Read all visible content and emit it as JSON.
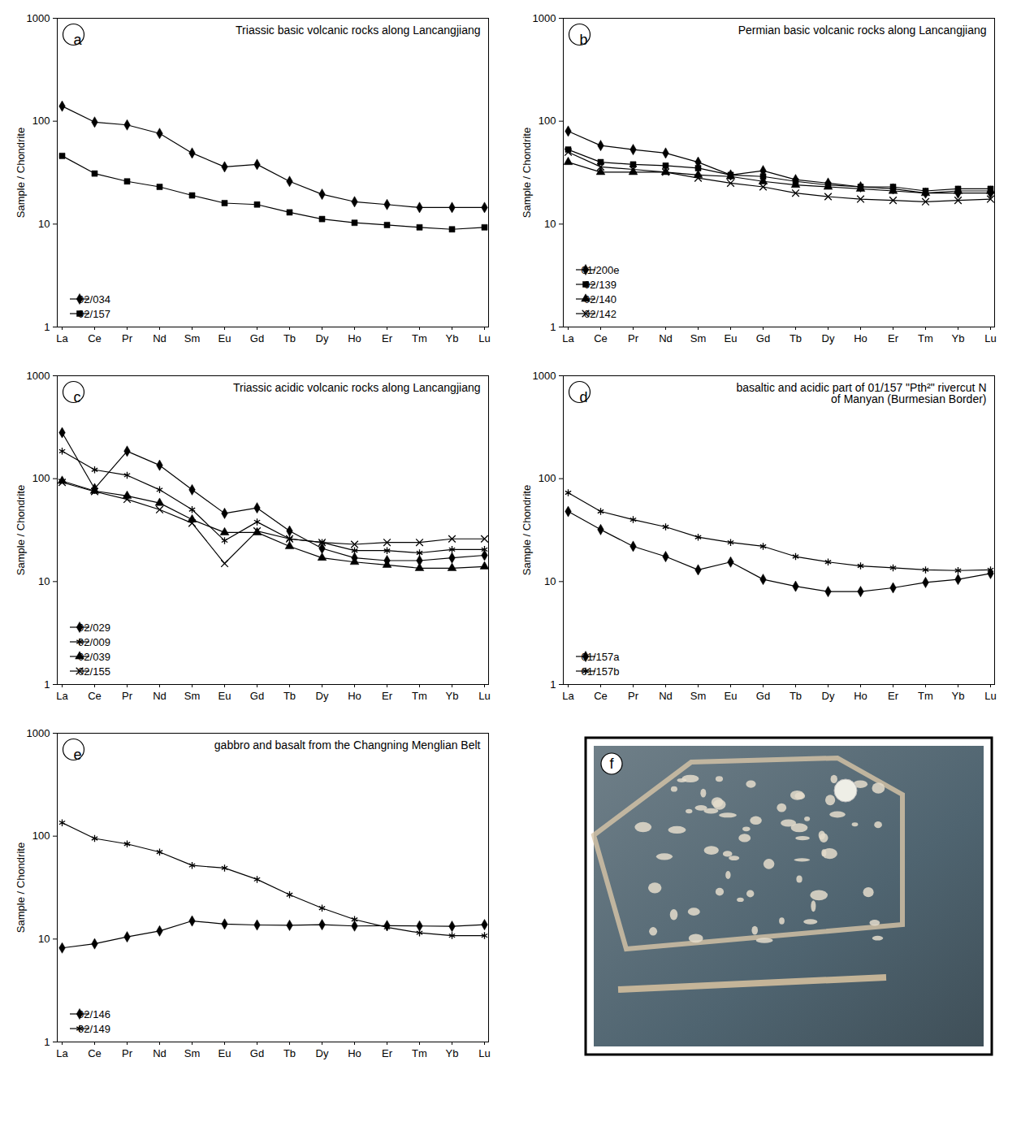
{
  "chart_data": [
    {
      "type": "line",
      "panel_label": "a",
      "title": "Triassic basic volcanic rocks along Lancangjiang",
      "y_label": "Sample / Chondrite",
      "log": "y",
      "legend": "bottom-left",
      "categories": [
        "La",
        "Ce",
        "Pr",
        "Nd",
        "Sm",
        "Eu",
        "Gd",
        "Tb",
        "Dy",
        "Ho",
        "Er",
        "Tm",
        "Yb",
        "Lu"
      ],
      "ylim": [
        1,
        1000
      ],
      "yticks": [
        1,
        10,
        100,
        1000
      ],
      "series": [
        {
          "name": "02/034",
          "color": "#000000",
          "marker": "diamond",
          "values": [
            140,
            98,
            92,
            76,
            49,
            36,
            38,
            26,
            19.5,
            16.5,
            15.5,
            14.5,
            14.5,
            14.5
          ]
        },
        {
          "name": "02/157",
          "color": "#000000",
          "marker": "square",
          "values": [
            46,
            31,
            26,
            23,
            19,
            16,
            15.5,
            13,
            11.2,
            10.3,
            9.8,
            9.3,
            8.9,
            9.3
          ]
        }
      ]
    },
    {
      "type": "line",
      "panel_label": "b",
      "title": "Permian basic volcanic rocks along Lancangjiang",
      "y_label": "Sample / Chondrite",
      "log": "y",
      "legend": "bottom-left",
      "categories": [
        "La",
        "Ce",
        "Pr",
        "Nd",
        "Sm",
        "Eu",
        "Gd",
        "Tb",
        "Dy",
        "Ho",
        "Er",
        "Tm",
        "Yb",
        "Lu"
      ],
      "ylim": [
        1,
        1000
      ],
      "yticks": [
        1,
        10,
        100,
        1000
      ],
      "series": [
        {
          "name": "01/200e",
          "color": "#000000",
          "marker": "diamond",
          "values": [
            80,
            58,
            53,
            49,
            40,
            30,
            33,
            27,
            25,
            23,
            22,
            20,
            20,
            20
          ]
        },
        {
          "name": "02/139",
          "color": "#000000",
          "marker": "square",
          "values": [
            53,
            40,
            38,
            37,
            35,
            30,
            29,
            26,
            24,
            23,
            23,
            21,
            22,
            22
          ]
        },
        {
          "name": "02/140",
          "color": "#000000",
          "marker": "triangle",
          "values": [
            40,
            32,
            32,
            32,
            30,
            29,
            26,
            24,
            23,
            22,
            21,
            20,
            21,
            21
          ]
        },
        {
          "name": "02/142",
          "color": "#000000",
          "marker": "times",
          "values": [
            50,
            36,
            34,
            32,
            28,
            25,
            23,
            20,
            18.5,
            17.5,
            17,
            16.5,
            17,
            17.5
          ]
        }
      ]
    },
    {
      "type": "line",
      "panel_label": "c",
      "title": "Triassic acidic volcanic rocks along Lancangjiang",
      "y_label": "Sample / Chondrite",
      "log": "y",
      "legend": "bottom-left",
      "categories": [
        "La",
        "Ce",
        "Pr",
        "Nd",
        "Sm",
        "Eu",
        "Gd",
        "Tb",
        "Dy",
        "Ho",
        "Er",
        "Tm",
        "Yb",
        "Lu"
      ],
      "ylim": [
        1,
        1000
      ],
      "yticks": [
        1,
        10,
        100,
        1000
      ],
      "series": [
        {
          "name": "02/029",
          "color": "#000000",
          "marker": "diamond",
          "values": [
            280,
            80,
            185,
            135,
            78,
            46,
            52,
            31,
            21,
            17,
            16,
            16,
            17,
            18
          ]
        },
        {
          "name": "02/009",
          "color": "#000000",
          "marker": "asterisk",
          "values": [
            185,
            122,
            108,
            78,
            50,
            25,
            38,
            26,
            24,
            20,
            20,
            19,
            20.5,
            20.5
          ]
        },
        {
          "name": "02/039",
          "color": "#000000",
          "marker": "triangle",
          "values": [
            95,
            76,
            68,
            58,
            40,
            30,
            30,
            22,
            17,
            15.5,
            14.5,
            13.5,
            13.5,
            14
          ]
        },
        {
          "name": "02/155",
          "color": "#000000",
          "marker": "times",
          "values": [
            92,
            75,
            63,
            50,
            37,
            15,
            31,
            26,
            24,
            23,
            24,
            24,
            26,
            26
          ]
        }
      ]
    },
    {
      "type": "line",
      "panel_label": "d",
      "title": "basaltic and acidic part of 01/157 \"Pth²\" rivercut N of Manyan (Burmesian Border)",
      "y_label": "Sample / Chondrite",
      "log": "y",
      "legend": "bottom-left",
      "categories": [
        "La",
        "Ce",
        "Pr",
        "Nd",
        "Sm",
        "Eu",
        "Gd",
        "Tb",
        "Dy",
        "Ho",
        "Er",
        "Tm",
        "Yb",
        "Lu"
      ],
      "ylim": [
        1,
        1000
      ],
      "yticks": [
        1,
        10,
        100,
        1000
      ],
      "series": [
        {
          "name": "01/157a",
          "color": "#000000",
          "marker": "diamond",
          "values": [
            48,
            32,
            22,
            17.5,
            13,
            15.5,
            10.5,
            9,
            8,
            8,
            8.7,
            9.8,
            10.5,
            12
          ]
        },
        {
          "name": "01/157b",
          "color": "#000000",
          "marker": "asterisk",
          "values": [
            73,
            48,
            40,
            34,
            27,
            24,
            22,
            17.5,
            15.5,
            14.2,
            13.6,
            13,
            12.8,
            13
          ]
        }
      ]
    },
    {
      "type": "line",
      "panel_label": "e",
      "title": "gabbro and basalt from the Changning Menglian Belt",
      "y_label": "Sample / Chondrite",
      "log": "y",
      "legend": "bottom-left",
      "categories": [
        "La",
        "Ce",
        "Pr",
        "Nd",
        "Sm",
        "Eu",
        "Gd",
        "Tb",
        "Dy",
        "Ho",
        "Er",
        "Tm",
        "Yb",
        "Lu"
      ],
      "ylim": [
        1,
        1000
      ],
      "yticks": [
        1,
        10,
        100,
        1000
      ],
      "series": [
        {
          "name": "02/146",
          "color": "#000000",
          "marker": "diamond",
          "values": [
            8.2,
            9,
            10.5,
            12,
            15,
            14,
            13.7,
            13.6,
            13.8,
            13.4,
            13.5,
            13.4,
            13.3,
            13.8
          ]
        },
        {
          "name": "02/149",
          "color": "#000000",
          "marker": "asterisk",
          "values": [
            135,
            95,
            84,
            70,
            52,
            49,
            38,
            27,
            20,
            15.5,
            13,
            11.5,
            10.8,
            10.8
          ]
        }
      ]
    }
  ],
  "image_panel": {
    "panel_label": "f"
  }
}
